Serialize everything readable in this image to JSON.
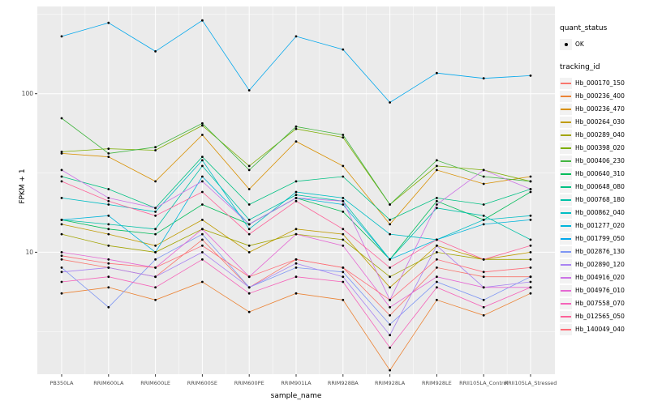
{
  "chart_data": {
    "type": "line",
    "title": "",
    "xlabel": "sample_name",
    "ylabel": "FPKM + 1",
    "y_scale": "log10",
    "ylim": [
      1.7,
      355
    ],
    "y_ticks": [
      10,
      100
    ],
    "y_minor_ticks": [
      3.162,
      31.62,
      316.2
    ],
    "grid": true,
    "panel_bg": "#EBEBEB",
    "grid_color": "#FFFFFF",
    "point_color": "#000000",
    "legend_position": "right",
    "categories": [
      "PB350LA",
      "RRIM600LA",
      "RRIM600LE",
      "RRIM600SE",
      "RRIM600PE",
      "RRIM901LA",
      "RRIM928BA",
      "RRIM928LA",
      "RRIM928LE",
      "RRII105LA_Control",
      "RRII105LA_Stressed"
    ],
    "series": [
      {
        "name": "Hb_000170_150",
        "color": "#F8766D",
        "values": [
          9,
          8,
          7,
          12,
          6,
          9,
          8,
          4,
          8,
          7,
          7
        ]
      },
      {
        "name": "Hb_000236_400",
        "color": "#EB8335",
        "values": [
          5.5,
          6,
          5,
          6.5,
          4.2,
          5.5,
          5,
          1.8,
          5,
          4,
          5.5
        ]
      },
      {
        "name": "Hb_000236_470",
        "color": "#D89000",
        "values": [
          42,
          40,
          28,
          55,
          25,
          50,
          35,
          15,
          33,
          27,
          30
        ]
      },
      {
        "name": "Hb_000264_030",
        "color": "#C09B00",
        "values": [
          15,
          13,
          11,
          16,
          10,
          14,
          13,
          6,
          11,
          9,
          10
        ]
      },
      {
        "name": "Hb_000289_040",
        "color": "#A2A400",
        "values": [
          13,
          11,
          10,
          14,
          11,
          13,
          12,
          7,
          10,
          9,
          9
        ]
      },
      {
        "name": "Hb_000398_020",
        "color": "#7CAE00",
        "values": [
          43,
          45,
          44,
          63,
          35,
          60,
          53,
          20,
          35,
          33,
          28
        ]
      },
      {
        "name": "Hb_000406_230",
        "color": "#42B540",
        "values": [
          70,
          42,
          46,
          65,
          33,
          62,
          55,
          20,
          38,
          30,
          28
        ]
      },
      {
        "name": "Hb_000640_310",
        "color": "#00BC59",
        "values": [
          16,
          14,
          13,
          20,
          15,
          22,
          18,
          9,
          21,
          16,
          24
        ]
      },
      {
        "name": "Hb_000648_080",
        "color": "#00C183",
        "values": [
          30,
          25,
          19,
          40,
          20,
          28,
          30,
          16,
          22,
          20,
          25
        ]
      },
      {
        "name": "Hb_000768_180",
        "color": "#00C1A7",
        "values": [
          16,
          15,
          14,
          35,
          16,
          23,
          21,
          9,
          19,
          17,
          12
        ]
      },
      {
        "name": "Hb_000862_040",
        "color": "#00BDC4",
        "values": [
          22,
          20,
          18,
          38,
          14,
          24,
          22,
          13,
          12,
          16,
          17
        ]
      },
      {
        "name": "Hb_001277_020",
        "color": "#00B5DB",
        "values": [
          16,
          17,
          10,
          30,
          15,
          22,
          20,
          9,
          12,
          15,
          16
        ]
      },
      {
        "name": "Hb_001799_050",
        "color": "#00A7EC",
        "values": [
          230,
          280,
          185,
          290,
          105,
          230,
          190,
          88,
          135,
          125,
          130
        ]
      },
      {
        "name": "Hb_002876_130",
        "color": "#7E96F4",
        "values": [
          8,
          4.5,
          9,
          13,
          6,
          8,
          7.5,
          3.5,
          6.5,
          5,
          7
        ]
      },
      {
        "name": "Hb_002890_120",
        "color": "#A983F2",
        "values": [
          7.5,
          8,
          7,
          10,
          6,
          8.5,
          7,
          3,
          11,
          6,
          6.5
        ]
      },
      {
        "name": "Hb_004916_020",
        "color": "#CC73E6",
        "values": [
          33,
          22,
          19,
          28,
          15,
          22,
          21,
          5,
          20,
          33,
          25
        ]
      },
      {
        "name": "Hb_004976_010",
        "color": "#E568D3",
        "values": [
          10,
          9,
          8,
          14,
          7,
          13,
          11,
          4.5,
          7,
          6,
          6
        ]
      },
      {
        "name": "Hb_007558_070",
        "color": "#F563B9",
        "values": [
          6.5,
          7,
          6,
          9,
          5.5,
          7,
          6.5,
          2.5,
          6,
          4.5,
          6
        ]
      },
      {
        "name": "Hb_012565_050",
        "color": "#FD6399",
        "values": [
          28,
          21,
          17,
          24,
          13,
          21,
          14,
          8,
          12,
          9,
          11
        ]
      },
      {
        "name": "Hb_140049_040",
        "color": "#FF6B77",
        "values": [
          9.5,
          8.5,
          8,
          11,
          7,
          9,
          8,
          5,
          9,
          7.5,
          8
        ]
      }
    ]
  },
  "legend": {
    "quant_status": {
      "title": "quant_status",
      "items": [
        {
          "label": "OK",
          "symbol": "point"
        }
      ]
    },
    "tracking_id": {
      "title": "tracking_id"
    }
  }
}
